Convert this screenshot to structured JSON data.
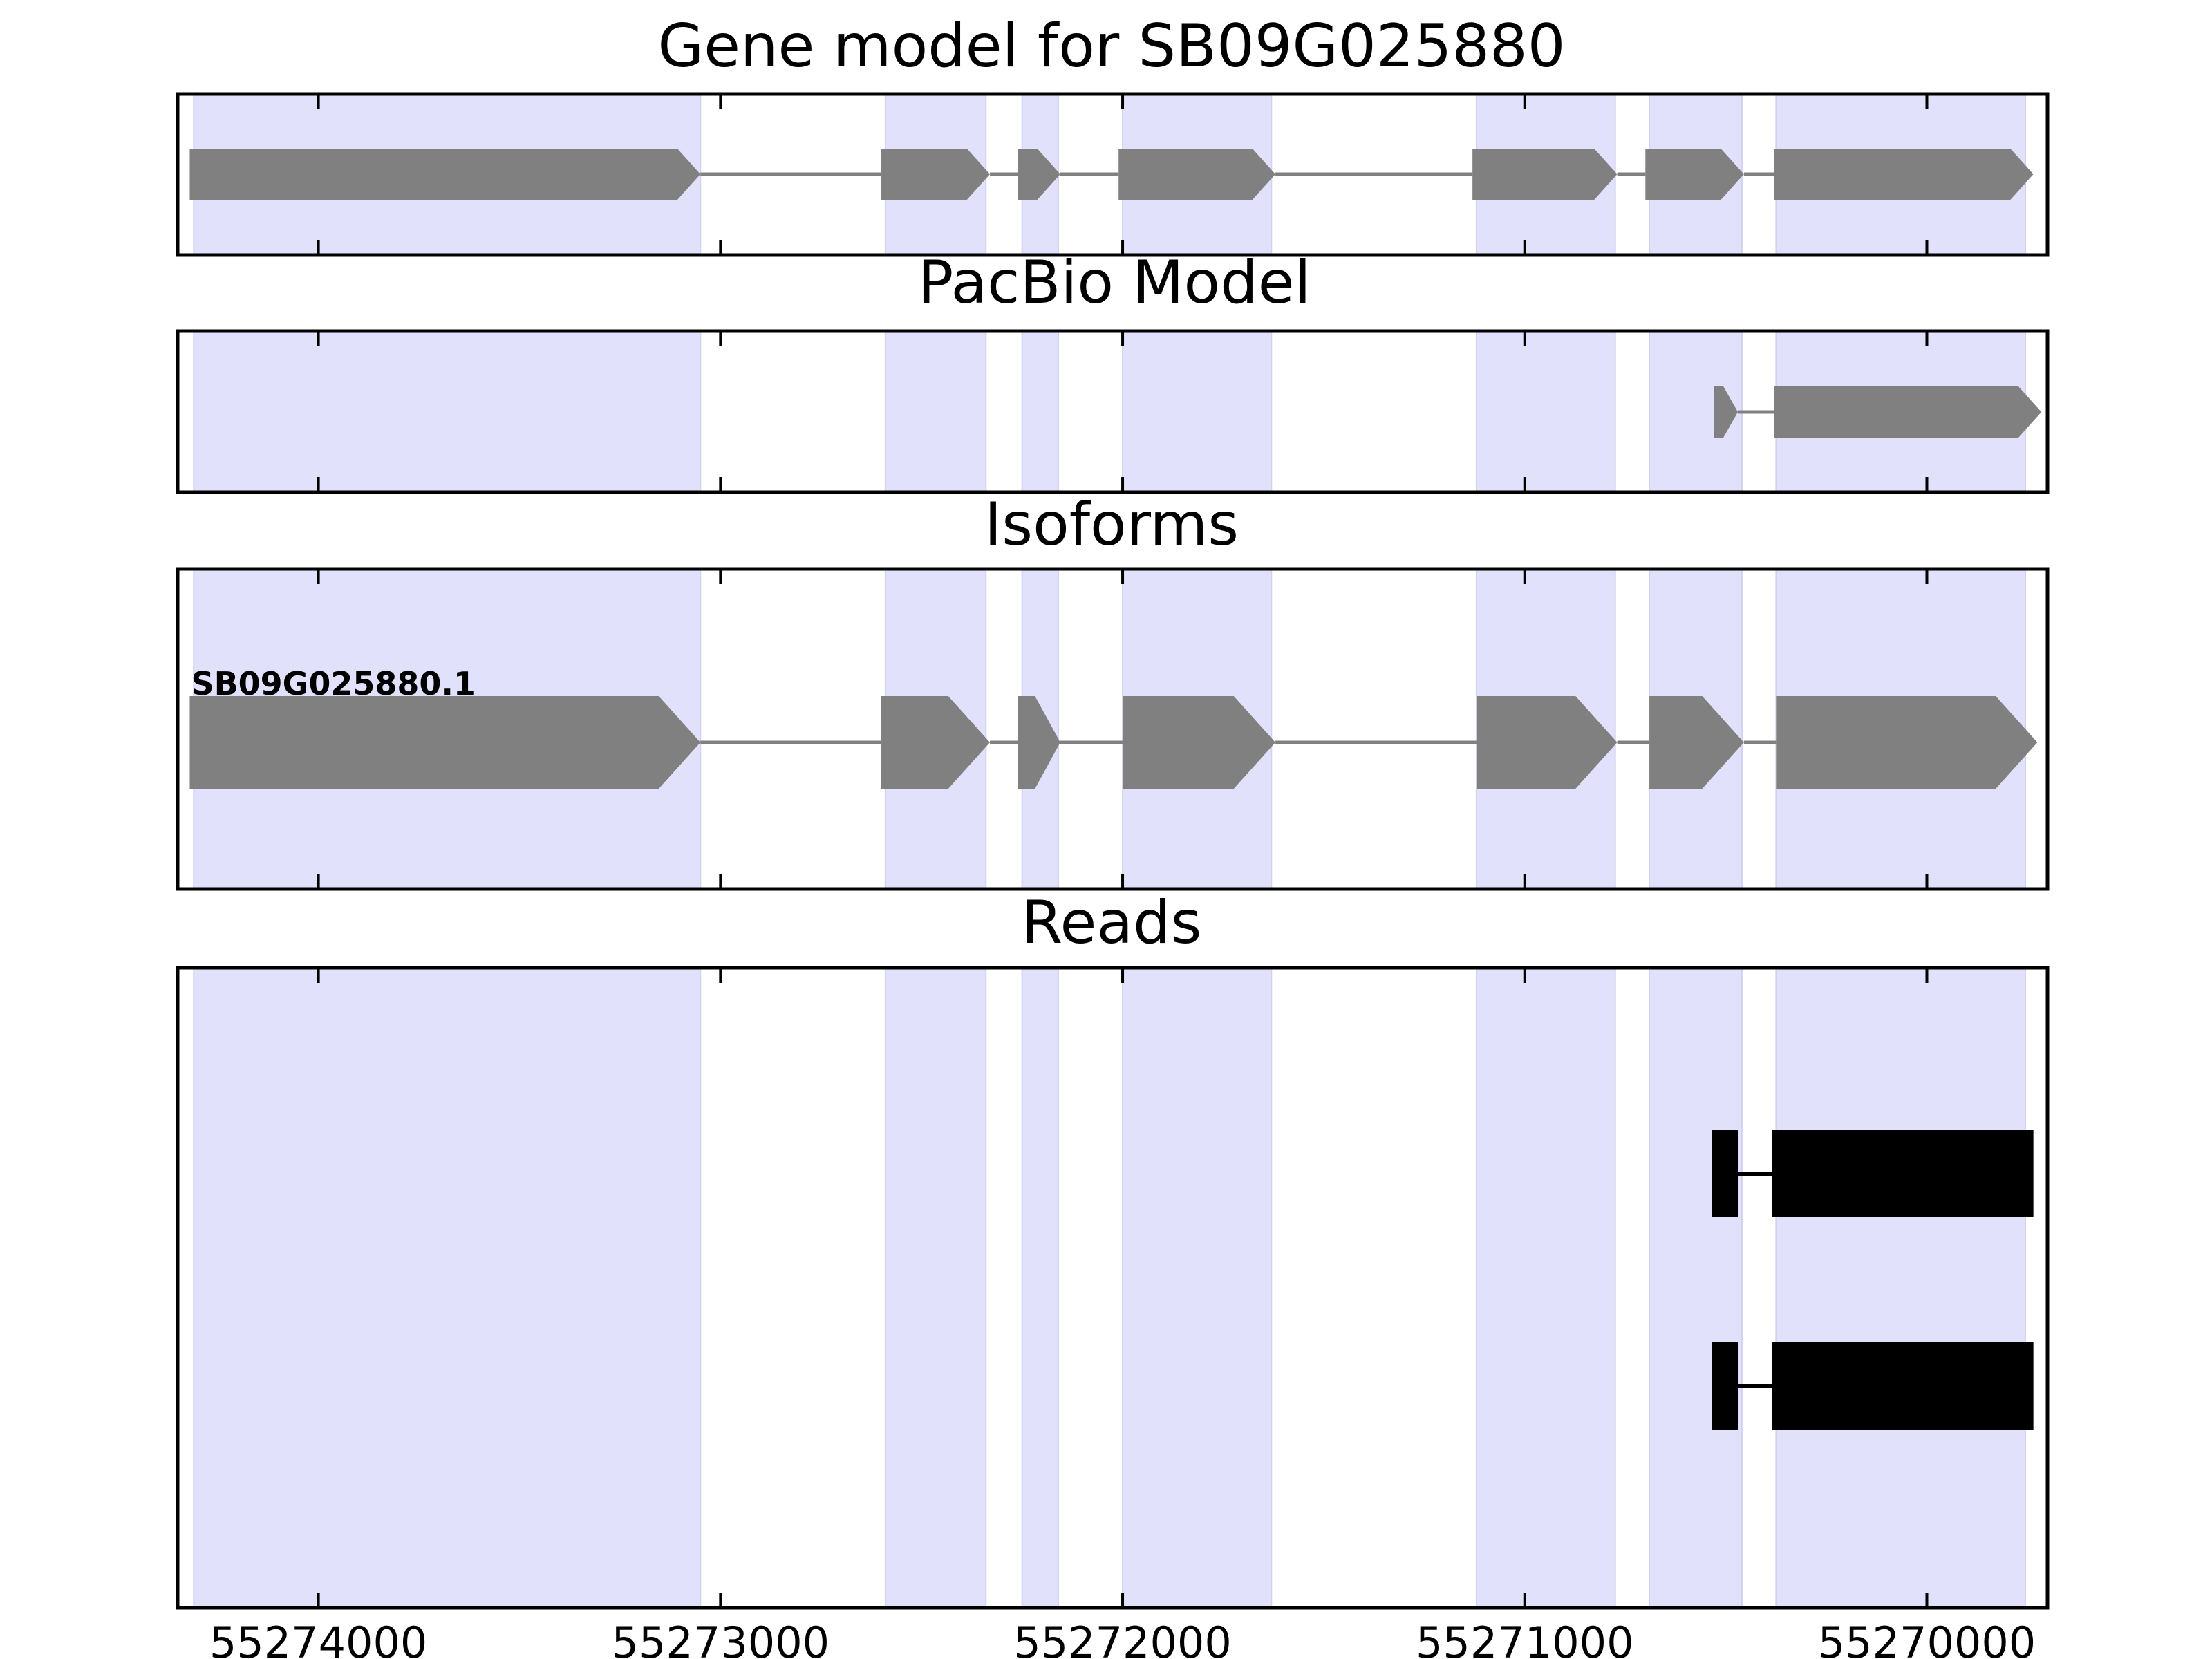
{
  "chart_data": {
    "type": "gene-track",
    "x_axis": {
      "range": [
        55274350,
        55269700
      ],
      "reversed": true,
      "ticks": [
        55274000,
        55273000,
        55272000,
        55271000,
        55270000
      ],
      "tick_labels": [
        "55274000",
        "55273000",
        "55272000",
        "55271000",
        "55270000"
      ]
    },
    "exon_highlights": [
      [
        55274310,
        55273050
      ],
      [
        55272590,
        55272340
      ],
      [
        55272250,
        55272160
      ],
      [
        55272000,
        55271630
      ],
      [
        55271120,
        55270775
      ],
      [
        55270690,
        55270460
      ],
      [
        55270375,
        55269755
      ]
    ],
    "colors": {
      "highlight": "#e1e1fb",
      "feature": "#808080",
      "read": "#000000",
      "frame": "#000000"
    },
    "panels": [
      {
        "title": "Gene model for SB09G025880",
        "tracks": [
          {
            "label": "",
            "color": "#808080",
            "strand": "-",
            "exons": [
              [
                55274320,
                55273050
              ],
              [
                55272600,
                55272330
              ],
              [
                55272260,
                55272155
              ],
              [
                55272010,
                55271620
              ],
              [
                55271130,
                55270770
              ],
              [
                55270700,
                55270455
              ],
              [
                55270380,
                55269735
              ]
            ]
          }
        ]
      },
      {
        "title": "PacBio Model",
        "tracks": [
          {
            "label": "",
            "color": "#808080",
            "strand": "-",
            "exons": [
              [
                55270530,
                55270470
              ],
              [
                55270380,
                55269715
              ]
            ]
          }
        ]
      },
      {
        "title": "Isoforms",
        "tracks": [
          {
            "label": "SB09G025880.1",
            "color": "#808080",
            "strand": "-",
            "exons": [
              [
                55274320,
                55273050
              ],
              [
                55272600,
                55272330
              ],
              [
                55272260,
                55272155
              ],
              [
                55272000,
                55271620
              ],
              [
                55271120,
                55270770
              ],
              [
                55270690,
                55270455
              ],
              [
                55270375,
                55269725
              ]
            ]
          }
        ]
      },
      {
        "title": "Reads",
        "tracks": [
          {
            "label": "",
            "color": "#000000",
            "strand": "",
            "exons": [
              [
                55270535,
                55270470
              ],
              [
                55270385,
                55269735
              ]
            ]
          },
          {
            "label": "",
            "color": "#000000",
            "strand": "",
            "exons": [
              [
                55270535,
                55270470
              ],
              [
                55270385,
                55269735
              ]
            ]
          }
        ]
      }
    ]
  }
}
